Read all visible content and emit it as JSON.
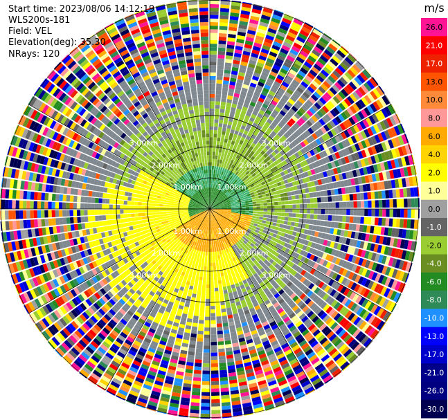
{
  "info": {
    "start_time": "Start time: 2023/08/06 14:12:19",
    "instrument": "WLS200s-181",
    "field": "Field: VEL",
    "elevation": "Elevation(deg): 35.30",
    "nrays": "NRays: 120"
  },
  "chart_data": {
    "type": "heatmap",
    "subtype": "ppi-polar",
    "field": "VEL",
    "units": "m/s",
    "nrays": 120,
    "elevation_deg": 35.3,
    "range_km_max": 3.5,
    "range_ring_labels_km": [
      "1.00km",
      "2.00km",
      "3.00km"
    ],
    "grid": true,
    "colorbar": {
      "label": "m/s",
      "ticks": [
        "26.0",
        "21.0",
        "17.0",
        "13.0",
        "10.0",
        "8.0",
        "6.0",
        "4.0",
        "2.0",
        "1.0",
        "0.0",
        "-1.0",
        "-2.0",
        "-4.0",
        "-6.0",
        "-8.0",
        "-10.0",
        "-13.0",
        "-17.0",
        "-21.0",
        "-26.0",
        "-30.0"
      ],
      "colors": [
        "#ff1493",
        "#ff0000",
        "#ee2200",
        "#ff5500",
        "#ff8a3a",
        "#ff9999",
        "#ffaa00",
        "#ffd400",
        "#ffff00",
        "#ffff99",
        "#a0a0a0",
        "#646464",
        "#9acd32",
        "#6b8e23",
        "#228b22",
        "#2e8b57",
        "#1e90ff",
        "#0000ff",
        "#0000cd",
        "#00008b",
        "#000080",
        "#000050"
      ]
    },
    "velocity_pattern": {
      "inner_green_max_m_s": -6.0,
      "ring_green_m_s": -2.0,
      "yellow_sector_m_s": 2.0,
      "orange_core_m_s": 6.0,
      "outer_noise": "random"
    }
  }
}
